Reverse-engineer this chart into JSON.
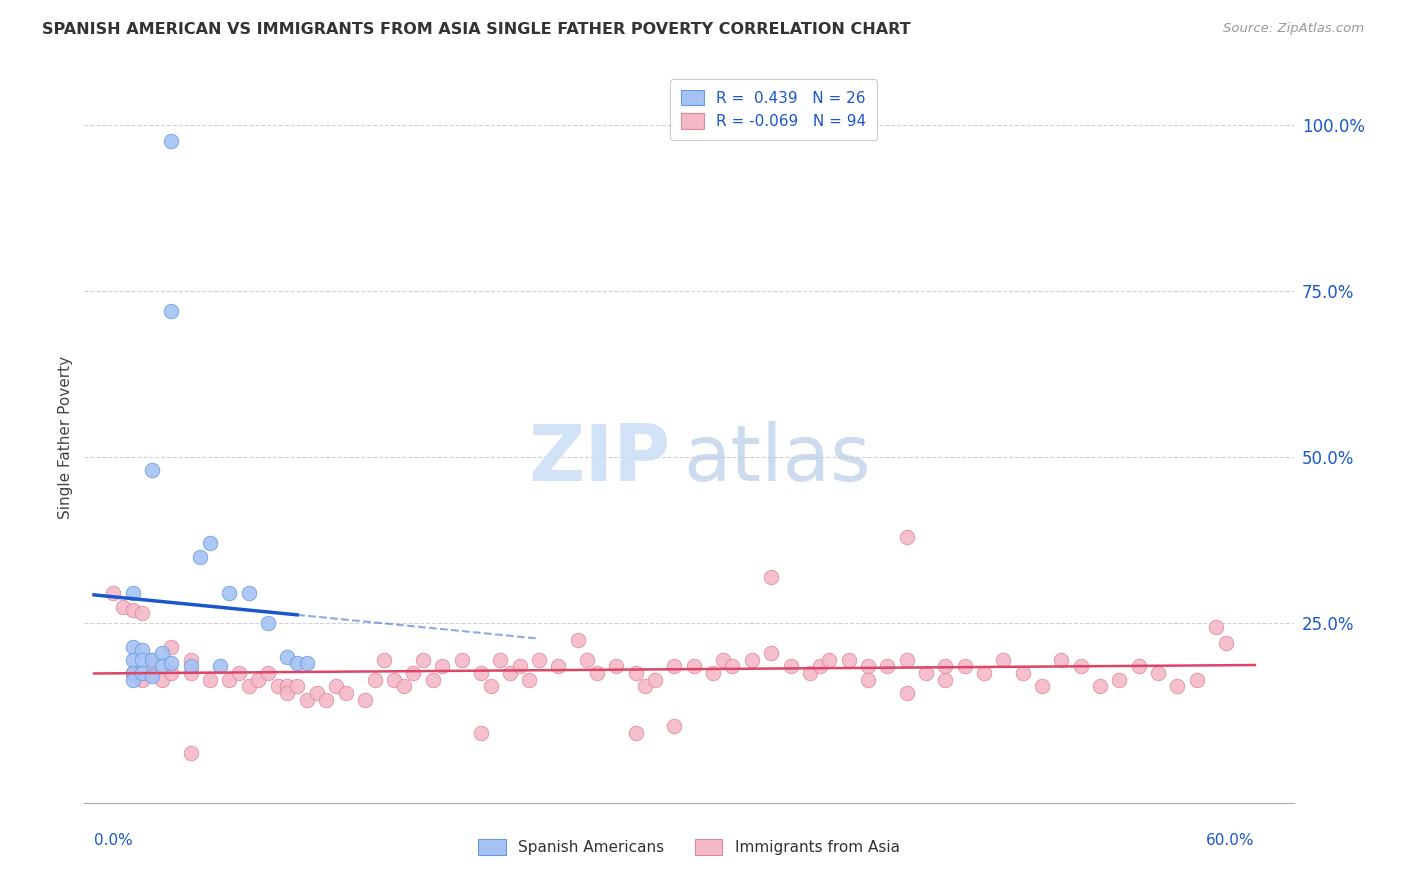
{
  "title": "SPANISH AMERICAN VS IMMIGRANTS FROM ASIA SINGLE FATHER POVERTY CORRELATION CHART",
  "source": "Source: ZipAtlas.com",
  "ylabel": "Single Father Poverty",
  "xlim": [
    -0.005,
    0.62
  ],
  "ylim": [
    -0.02,
    1.08
  ],
  "ytick_vals": [
    0.25,
    0.5,
    0.75,
    1.0
  ],
  "ytick_labels": [
    "25.0%",
    "50.0%",
    "75.0%",
    "100.0%"
  ],
  "blue_scatter_color": "#a4c2f4",
  "blue_edge_color": "#6699dd",
  "pink_scatter_color": "#f4b8c8",
  "pink_edge_color": "#dd8899",
  "blue_line_color": "#1a56cc",
  "pink_line_color": "#dd4466",
  "dashed_line_color": "#a4c2f4",
  "grid_color": "#cccccc",
  "r_text_color": "#1a56cc",
  "ytick_color": "#1a56cc",
  "xlabel_color": "#1a56cc",
  "watermark_zip_color": "#c9ddf5",
  "watermark_atlas_color": "#b8cce8",
  "blue_x": [
    0.04,
    0.02,
    0.02,
    0.02,
    0.02,
    0.02,
    0.025,
    0.025,
    0.025,
    0.03,
    0.03,
    0.03,
    0.035,
    0.035,
    0.04,
    0.04,
    0.05,
    0.055,
    0.06,
    0.065,
    0.07,
    0.08,
    0.09,
    0.1,
    0.105,
    0.11
  ],
  "blue_y": [
    0.975,
    0.295,
    0.215,
    0.195,
    0.175,
    0.165,
    0.21,
    0.195,
    0.175,
    0.48,
    0.195,
    0.17,
    0.205,
    0.185,
    0.72,
    0.19,
    0.185,
    0.35,
    0.37,
    0.185,
    0.295,
    0.295,
    0.25,
    0.2,
    0.19,
    0.19
  ],
  "pink_x": [
    0.01,
    0.015,
    0.02,
    0.025,
    0.02,
    0.025,
    0.03,
    0.03,
    0.035,
    0.04,
    0.04,
    0.05,
    0.05,
    0.06,
    0.07,
    0.075,
    0.08,
    0.085,
    0.09,
    0.095,
    0.1,
    0.1,
    0.105,
    0.11,
    0.115,
    0.12,
    0.125,
    0.13,
    0.14,
    0.145,
    0.15,
    0.155,
    0.16,
    0.165,
    0.17,
    0.175,
    0.18,
    0.19,
    0.2,
    0.205,
    0.21,
    0.215,
    0.22,
    0.225,
    0.23,
    0.24,
    0.25,
    0.255,
    0.26,
    0.27,
    0.28,
    0.285,
    0.29,
    0.3,
    0.31,
    0.32,
    0.325,
    0.33,
    0.34,
    0.35,
    0.36,
    0.37,
    0.375,
    0.38,
    0.39,
    0.4,
    0.4,
    0.41,
    0.42,
    0.43,
    0.44,
    0.44,
    0.45,
    0.46,
    0.47,
    0.48,
    0.49,
    0.5,
    0.51,
    0.52,
    0.53,
    0.54,
    0.55,
    0.56,
    0.57,
    0.585,
    0.42,
    0.35,
    0.28,
    0.2,
    0.58,
    0.3,
    0.42,
    0.05
  ],
  "pink_y": [
    0.295,
    0.275,
    0.27,
    0.265,
    0.175,
    0.165,
    0.195,
    0.175,
    0.165,
    0.215,
    0.175,
    0.195,
    0.175,
    0.165,
    0.165,
    0.175,
    0.155,
    0.165,
    0.175,
    0.155,
    0.155,
    0.145,
    0.155,
    0.135,
    0.145,
    0.135,
    0.155,
    0.145,
    0.135,
    0.165,
    0.195,
    0.165,
    0.155,
    0.175,
    0.195,
    0.165,
    0.185,
    0.195,
    0.175,
    0.155,
    0.195,
    0.175,
    0.185,
    0.165,
    0.195,
    0.185,
    0.225,
    0.195,
    0.175,
    0.185,
    0.175,
    0.155,
    0.165,
    0.185,
    0.185,
    0.175,
    0.195,
    0.185,
    0.195,
    0.205,
    0.185,
    0.175,
    0.185,
    0.195,
    0.195,
    0.185,
    0.165,
    0.185,
    0.195,
    0.175,
    0.185,
    0.165,
    0.185,
    0.175,
    0.195,
    0.175,
    0.155,
    0.195,
    0.185,
    0.155,
    0.165,
    0.185,
    0.175,
    0.155,
    0.165,
    0.22,
    0.38,
    0.32,
    0.085,
    0.085,
    0.245,
    0.095,
    0.145,
    0.055
  ]
}
